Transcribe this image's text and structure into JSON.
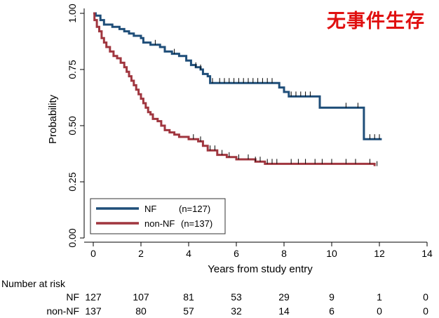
{
  "annotation": "无事件生存",
  "chart_data": {
    "type": "line",
    "subtype": "kaplan-meier",
    "title": "",
    "xlabel": "Years from study entry",
    "ylabel": "Probability",
    "xlim": [
      0,
      14
    ],
    "ylim": [
      0,
      1
    ],
    "xticks": [
      0,
      2,
      4,
      6,
      8,
      10,
      12,
      14
    ],
    "xtick_labels": [
      "0",
      "2",
      "4",
      "6",
      "8",
      "10",
      "12",
      "14"
    ],
    "yticks": [
      0,
      0.25,
      0.5,
      0.75,
      1
    ],
    "ytick_labels": [
      "0.00",
      "0.25",
      "0.50",
      "0.75",
      "1.00"
    ],
    "legend_position": "bottom-left",
    "series": [
      {
        "name": "NF",
        "n_label": "(n=127)",
        "color": "#1f4e79",
        "steps": [
          [
            0,
            1.0
          ],
          [
            0.1,
            0.99
          ],
          [
            0.3,
            0.97
          ],
          [
            0.45,
            0.95
          ],
          [
            0.8,
            0.94
          ],
          [
            1.1,
            0.93
          ],
          [
            1.3,
            0.92
          ],
          [
            1.5,
            0.91
          ],
          [
            1.7,
            0.9
          ],
          [
            2.0,
            0.89
          ],
          [
            2.1,
            0.87
          ],
          [
            2.4,
            0.86
          ],
          [
            2.8,
            0.85
          ],
          [
            3.0,
            0.83
          ],
          [
            3.3,
            0.82
          ],
          [
            3.6,
            0.81
          ],
          [
            3.9,
            0.79
          ],
          [
            4.1,
            0.77
          ],
          [
            4.3,
            0.76
          ],
          [
            4.5,
            0.75
          ],
          [
            4.6,
            0.73
          ],
          [
            4.8,
            0.72
          ],
          [
            4.9,
            0.69
          ],
          [
            7.8,
            0.67
          ],
          [
            8.0,
            0.65
          ],
          [
            8.2,
            0.63
          ],
          [
            9.5,
            0.58
          ],
          [
            11.3,
            0.58
          ],
          [
            11.35,
            0.44
          ],
          [
            12.1,
            0.44
          ]
        ],
        "censor_times": [
          2.6,
          3.4,
          4.3,
          4.5,
          5.0,
          5.3,
          5.5,
          5.7,
          5.9,
          6.1,
          6.3,
          6.5,
          6.7,
          6.9,
          7.1,
          7.3,
          7.5,
          8.3,
          8.5,
          8.7,
          8.9,
          9.1,
          10.6,
          11.1,
          11.6,
          11.8,
          12.0
        ]
      },
      {
        "name": "non-NF",
        "n_label": "(n=137)",
        "color": "#a0363f",
        "steps": [
          [
            0,
            1.0
          ],
          [
            0.05,
            0.97
          ],
          [
            0.15,
            0.94
          ],
          [
            0.25,
            0.92
          ],
          [
            0.35,
            0.89
          ],
          [
            0.45,
            0.87
          ],
          [
            0.55,
            0.85
          ],
          [
            0.7,
            0.83
          ],
          [
            0.85,
            0.81
          ],
          [
            1.0,
            0.8
          ],
          [
            1.15,
            0.78
          ],
          [
            1.3,
            0.76
          ],
          [
            1.4,
            0.74
          ],
          [
            1.5,
            0.72
          ],
          [
            1.6,
            0.7
          ],
          [
            1.7,
            0.68
          ],
          [
            1.8,
            0.66
          ],
          [
            1.9,
            0.64
          ],
          [
            2.0,
            0.62
          ],
          [
            2.1,
            0.6
          ],
          [
            2.2,
            0.58
          ],
          [
            2.3,
            0.56
          ],
          [
            2.4,
            0.55
          ],
          [
            2.5,
            0.53
          ],
          [
            2.7,
            0.52
          ],
          [
            2.85,
            0.5
          ],
          [
            3.0,
            0.48
          ],
          [
            3.2,
            0.47
          ],
          [
            3.4,
            0.46
          ],
          [
            3.6,
            0.45
          ],
          [
            4.0,
            0.44
          ],
          [
            4.4,
            0.43
          ],
          [
            4.6,
            0.41
          ],
          [
            4.8,
            0.39
          ],
          [
            5.2,
            0.37
          ],
          [
            5.6,
            0.36
          ],
          [
            6.0,
            0.35
          ],
          [
            6.8,
            0.34
          ],
          [
            7.2,
            0.33
          ],
          [
            11.8,
            0.32
          ]
        ],
        "censor_times": [
          4.2,
          4.5,
          4.9,
          5.1,
          5.4,
          5.7,
          6.1,
          6.5,
          6.8,
          7.0,
          7.3,
          7.5,
          7.7,
          8.3,
          8.6,
          8.9,
          9.3,
          9.6,
          10.0,
          10.6,
          11.0,
          11.6,
          11.9
        ]
      }
    ],
    "number_at_risk": {
      "title": "Number at risk",
      "times": [
        0,
        2,
        4,
        6,
        8,
        10,
        12,
        14
      ],
      "rows": [
        {
          "label": "NF",
          "values": [
            "127",
            "107",
            "81",
            "53",
            "29",
            "9",
            "1",
            "0"
          ]
        },
        {
          "label": "non-NF",
          "values": [
            "137",
            "80",
            "57",
            "32",
            "14",
            "6",
            "0",
            "0"
          ]
        }
      ]
    }
  }
}
